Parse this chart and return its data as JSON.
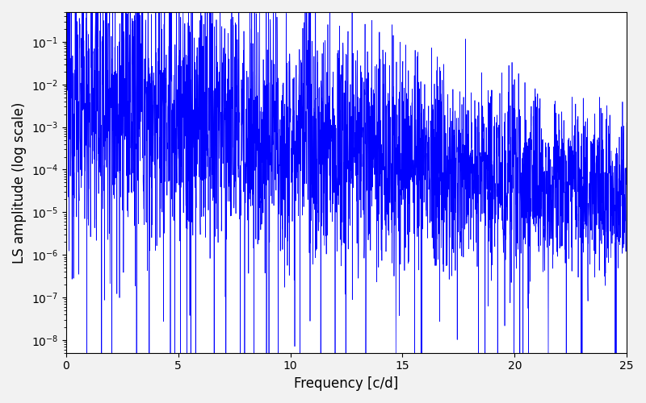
{
  "xlabel": "Frequency [c/d]",
  "ylabel": "LS amplitude (log scale)",
  "line_color": "#0000ff",
  "xlim": [
    0,
    25
  ],
  "ylim": [
    5e-09,
    0.5
  ],
  "xticks": [
    0,
    5,
    10,
    15,
    20,
    25
  ],
  "n_points": 3000,
  "seed": 12345,
  "figsize": [
    8.0,
    5.0
  ],
  "dpi": 100,
  "bg_color": "white",
  "fig_bg_color": "#f2f2f2"
}
